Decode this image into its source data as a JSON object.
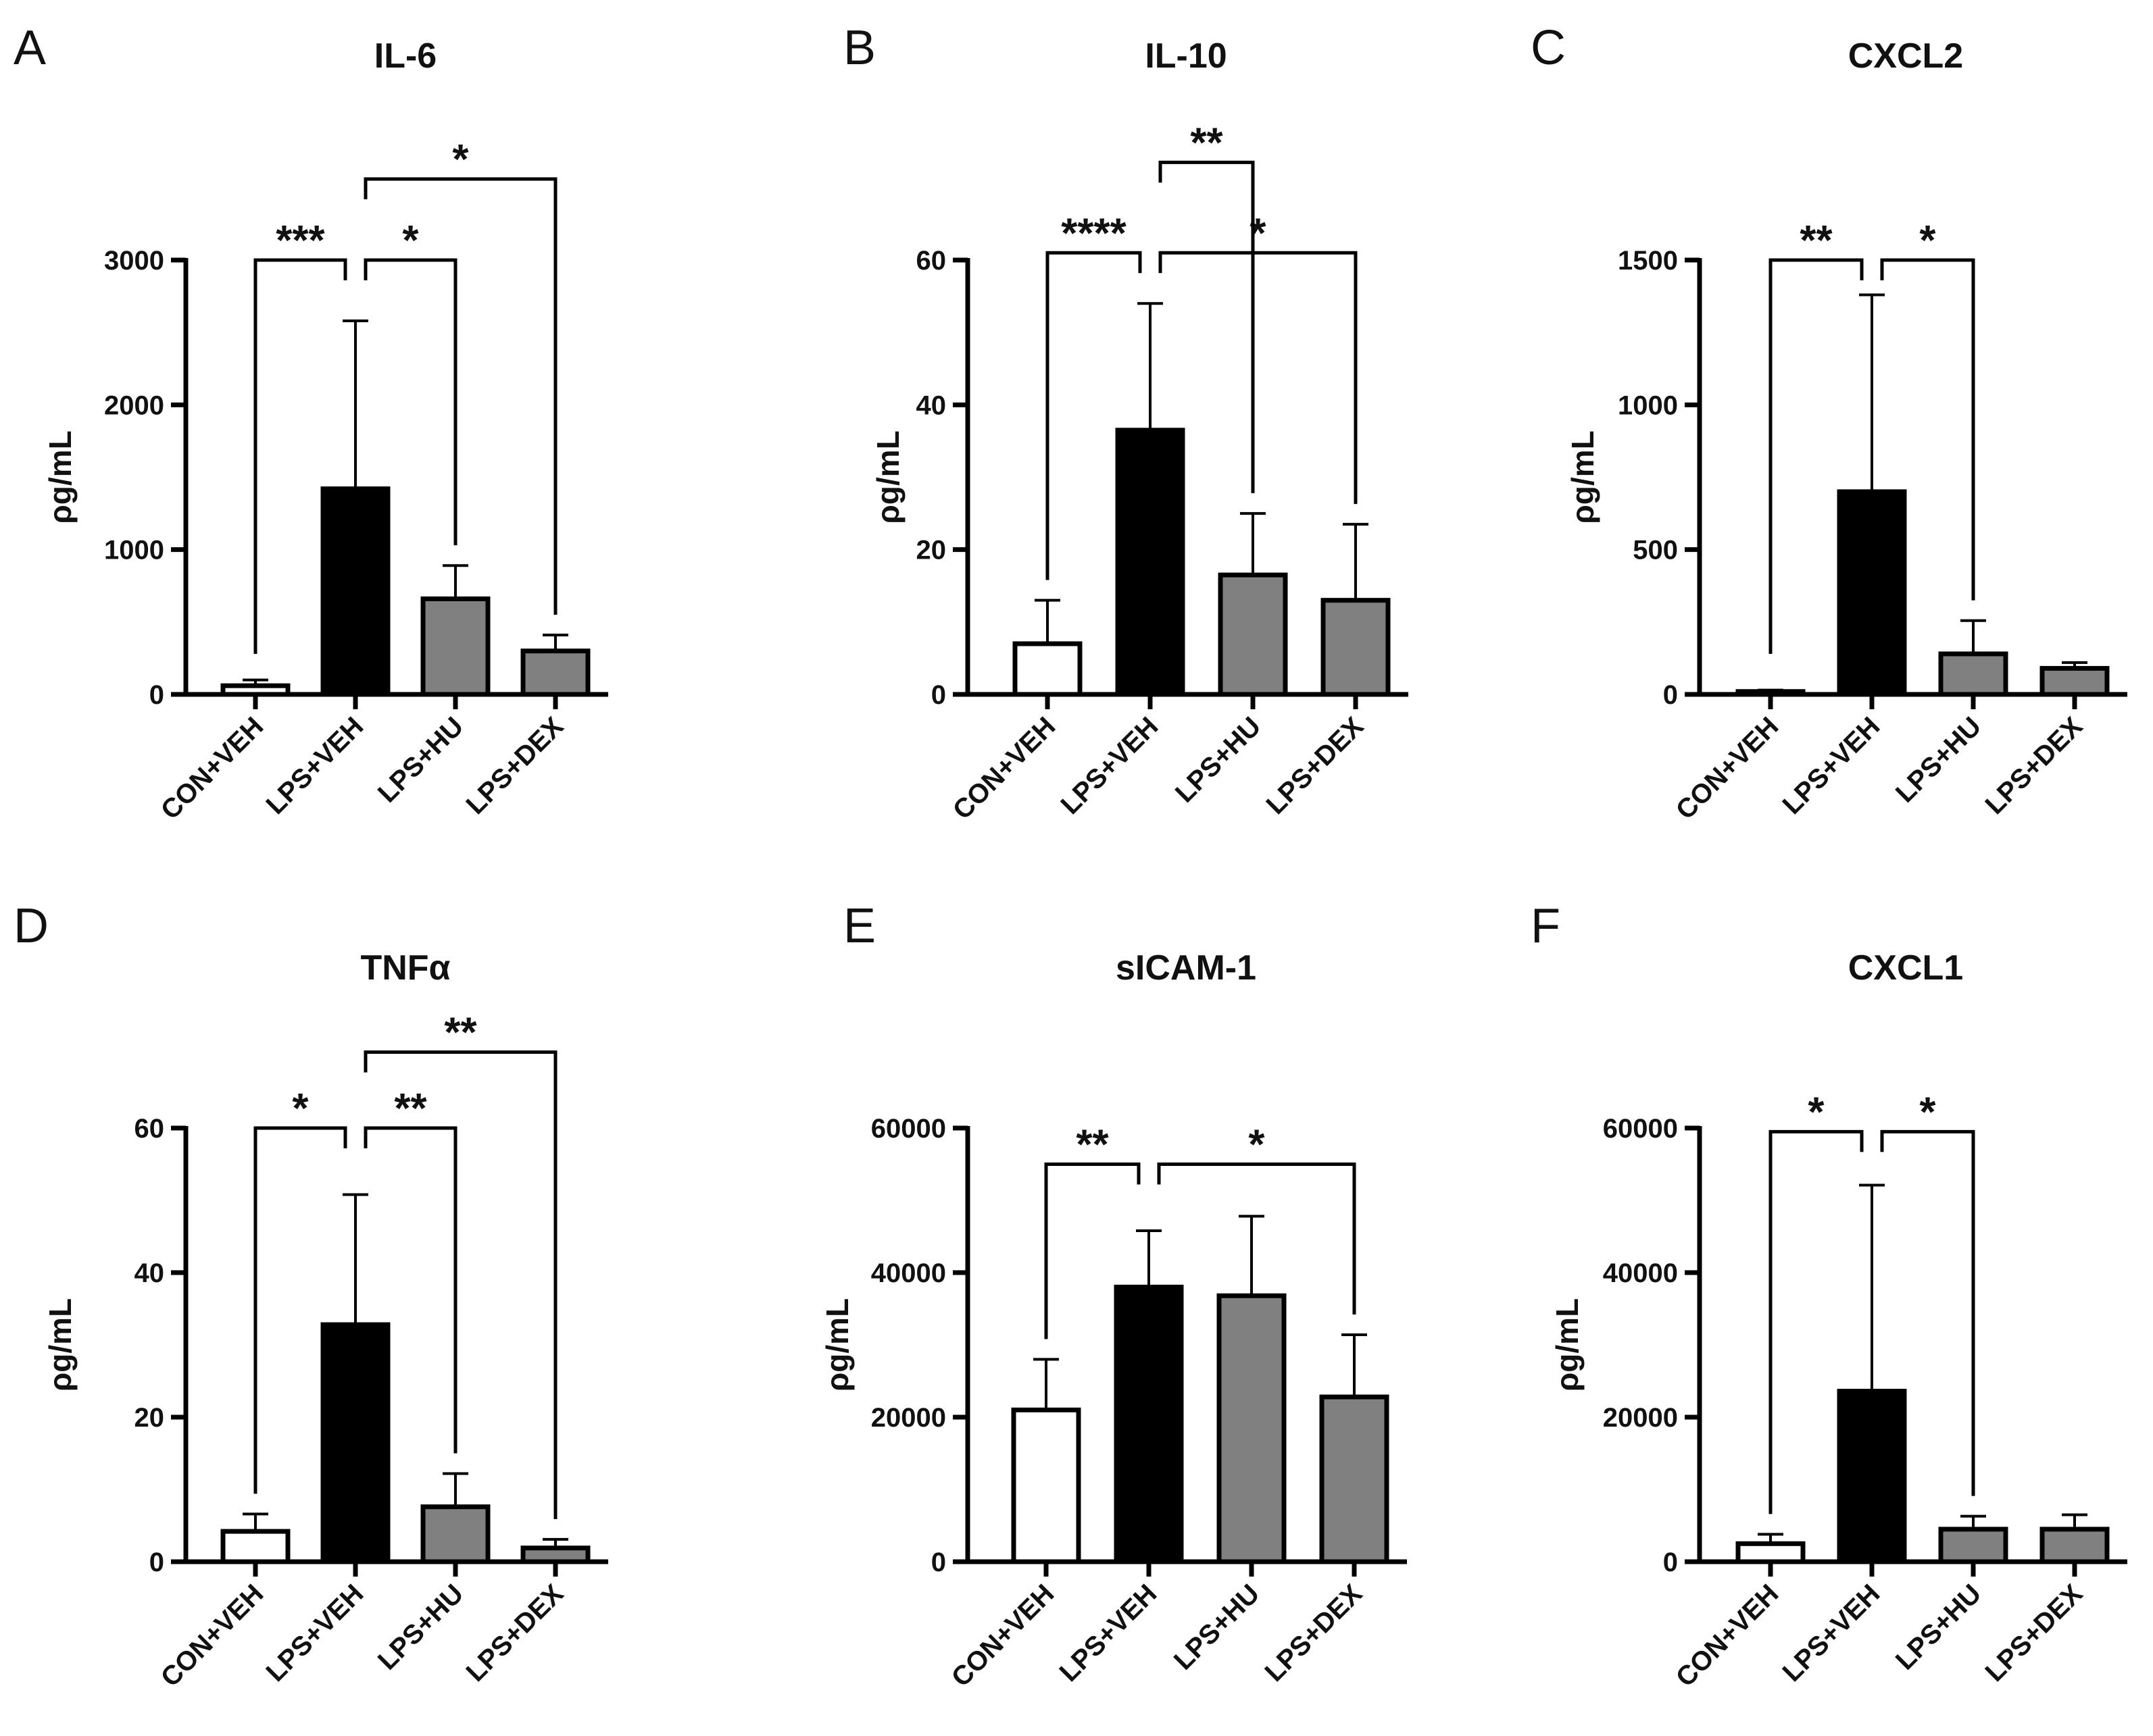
{
  "figure": {
    "bar_colors": [
      "#ffffff",
      "#000000",
      "#808080",
      "#808080"
    ],
    "stroke_color": "#000000"
  },
  "chart_data": [
    {
      "panel": "A",
      "type": "bar",
      "title": "IL-6",
      "ylabel": "ρg/mL",
      "xlabel": "",
      "categories": [
        "CON+VEH",
        "LPS+VEH",
        "LPS+HU",
        "LPS+DEX"
      ],
      "values": [
        60,
        1420,
        660,
        300
      ],
      "errors": [
        40,
        1160,
        230,
        110
      ],
      "ylim": [
        0,
        3000
      ],
      "yticks": [
        "0",
        "1000",
        "2000",
        "3000"
      ],
      "ytick_values": [
        0,
        1000,
        2000,
        3000
      ],
      "significance": [
        {
          "from": 0,
          "to": 1,
          "label": "***",
          "level": 3000
        },
        {
          "from": 1,
          "to": 2,
          "label": "*",
          "level": 3000
        },
        {
          "from": 1,
          "to": 3,
          "label": "*",
          "level": 3560
        }
      ]
    },
    {
      "panel": "B",
      "type": "bar",
      "title": "IL-10",
      "ylabel": "ρg/mL",
      "xlabel": "",
      "categories": [
        "CON+VEH",
        "LPS+VEH",
        "LPS+HU",
        "LPS+DEX"
      ],
      "values": [
        7,
        36.5,
        16.5,
        13
      ],
      "errors": [
        6,
        17.5,
        8.5,
        10.5
      ],
      "ylim": [
        0,
        60
      ],
      "yticks": [
        "0",
        "20",
        "40",
        "60"
      ],
      "ytick_values": [
        0,
        20,
        40,
        60
      ],
      "significance": [
        {
          "from": 0,
          "to": 1,
          "label": "****",
          "level": 61
        },
        {
          "from": 1,
          "to": 3,
          "label": "*",
          "level": 61
        },
        {
          "from": 1,
          "to": 2,
          "label": "**",
          "level": 73.5
        }
      ]
    },
    {
      "panel": "C",
      "type": "bar",
      "title": "CXCL2",
      "ylabel": "ρg/mL",
      "xlabel": "",
      "categories": [
        "CON+VEH",
        "LPS+VEH",
        "LPS+HU",
        "LPS+DEX"
      ],
      "values": [
        10,
        700,
        140,
        90
      ],
      "errors": [
        5,
        680,
        115,
        20
      ],
      "ylim": [
        0,
        1500
      ],
      "yticks": [
        "0",
        "500",
        "1000",
        "1500"
      ],
      "ytick_values": [
        0,
        500,
        1000,
        1500
      ],
      "significance": [
        {
          "from": 0,
          "to": 1,
          "label": "**",
          "level": 1500
        },
        {
          "from": 1,
          "to": 2,
          "label": "*",
          "level": 1500
        }
      ]
    },
    {
      "panel": "D",
      "type": "bar",
      "title": "TNFα",
      "ylabel": "ρg/mL",
      "xlabel": "",
      "categories": [
        "CON+VEH",
        "LPS+VEH",
        "LPS+HU",
        "LPS+DEX"
      ],
      "values": [
        4.2,
        32.8,
        7.6,
        1.9
      ],
      "errors": [
        2.4,
        18,
        4.6,
        1.2
      ],
      "ylim": [
        0,
        60
      ],
      "yticks": [
        "0",
        "20",
        "40",
        "60"
      ],
      "ytick_values": [
        0,
        20,
        40,
        60
      ],
      "significance": [
        {
          "from": 0,
          "to": 1,
          "label": "*",
          "level": 60
        },
        {
          "from": 1,
          "to": 2,
          "label": "**",
          "level": 60
        },
        {
          "from": 1,
          "to": 3,
          "label": "**",
          "level": 70.5
        }
      ]
    },
    {
      "panel": "E",
      "type": "bar",
      "title": "sICAM-1",
      "ylabel": "ρg/mL",
      "xlabel": "",
      "categories": [
        "CON+VEH",
        "LPS+VEH",
        "LPS+HU",
        "LPS+DEX"
      ],
      "values": [
        21000,
        38000,
        36800,
        22800
      ],
      "errors": [
        7000,
        7800,
        11000,
        8600
      ],
      "ylim": [
        0,
        60000
      ],
      "yticks": [
        "0",
        "20000",
        "40000",
        "60000"
      ],
      "ytick_values": [
        0,
        20000,
        40000,
        60000
      ],
      "significance": [
        {
          "from": 0,
          "to": 1,
          "label": "**",
          "level": 55000
        },
        {
          "from": 1,
          "to": 3,
          "label": "*",
          "level": 55000
        }
      ]
    },
    {
      "panel": "F",
      "type": "bar",
      "title": "CXCL1",
      "ylabel": "ρg/mL",
      "xlabel": "",
      "categories": [
        "CON+VEH",
        "LPS+VEH",
        "LPS+HU",
        "LPS+DEX"
      ],
      "values": [
        2500,
        23600,
        4500,
        4500
      ],
      "errors": [
        1300,
        28500,
        1800,
        2000
      ],
      "ylim": [
        0,
        60000
      ],
      "yticks": [
        "0",
        "20000",
        "40000",
        "60000"
      ],
      "ytick_values": [
        0,
        20000,
        40000,
        60000
      ],
      "significance": [
        {
          "from": 0,
          "to": 1,
          "label": "*",
          "level": 59500
        },
        {
          "from": 1,
          "to": 2,
          "label": "*",
          "level": 59500
        }
      ]
    }
  ]
}
